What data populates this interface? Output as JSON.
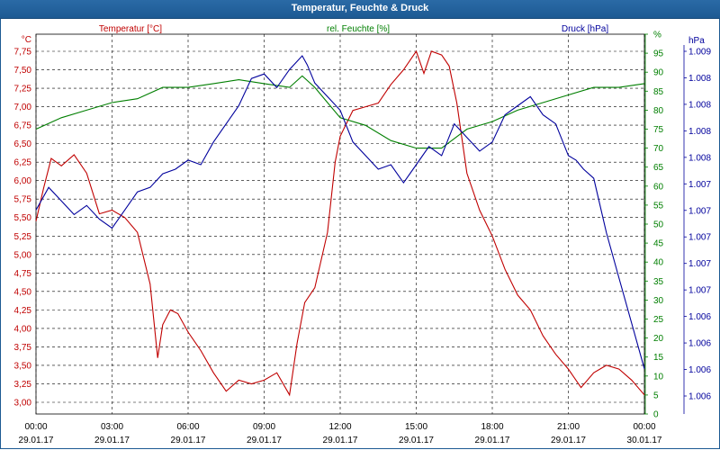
{
  "window": {
    "title": "Temperatur, Feuchte & Druck"
  },
  "colors": {
    "temperature": "#c00000",
    "humidity": "#007f00",
    "pressure": "#00009c",
    "title_bar": "#1d5a93",
    "grid": "#000000"
  },
  "chart_data": {
    "type": "line",
    "title": "Temperatur, Feuchte & Druck",
    "grid": true,
    "x_ticks": [
      {
        "time": "00:00",
        "date": "29.01.17"
      },
      {
        "time": "03:00",
        "date": "29.01.17"
      },
      {
        "time": "06:00",
        "date": "29.01.17"
      },
      {
        "time": "09:00",
        "date": "29.01.17"
      },
      {
        "time": "12:00",
        "date": "29.01.17"
      },
      {
        "time": "15:00",
        "date": "29.01.17"
      },
      {
        "time": "18:00",
        "date": "29.01.17"
      },
      {
        "time": "21:00",
        "date": "29.01.17"
      },
      {
        "time": "00:00",
        "date": "30.01.17"
      }
    ],
    "x_range_hours": [
      0,
      24
    ],
    "axes": {
      "temperature": {
        "label": "Temperatur [°C]",
        "unit": "°C",
        "ylim": [
          3.0,
          7.75
        ],
        "ticks": [
          "3,00",
          "3,25",
          "3,50",
          "3,75",
          "4,00",
          "4,25",
          "4,50",
          "4,75",
          "5,00",
          "5,25",
          "5,50",
          "5,75",
          "6,00",
          "6,25",
          "6,50",
          "6,75",
          "7,00",
          "7,25",
          "7,50",
          "7,75"
        ]
      },
      "humidity": {
        "label": "rel. Feuchte [%]",
        "unit": "%",
        "ylim": [
          0,
          100
        ],
        "ticks": [
          "0",
          "5",
          "10",
          "15",
          "20",
          "25",
          "30",
          "35",
          "40",
          "45",
          "50",
          "55",
          "60",
          "65",
          "70",
          "75",
          "80",
          "85",
          "90",
          "95",
          "%"
        ]
      },
      "pressure": {
        "label": "Druck [hPa]",
        "unit": "hPa",
        "ticks": [
          "1.006",
          "1.006",
          "1.006",
          "1.006",
          "1.007",
          "1.007",
          "1.007",
          "1.007",
          "1.007",
          "1.008",
          "1.008",
          "1.008",
          "1.008",
          "1.009"
        ]
      }
    },
    "series": [
      {
        "name": "Temperatur [°C]",
        "axis": "temperature",
        "x": [
          0,
          0.3,
          0.6,
          1,
          1.5,
          2,
          2.5,
          3,
          3.5,
          4,
          4.5,
          4.8,
          5,
          5.3,
          5.6,
          6,
          6.5,
          7,
          7.5,
          8,
          8.5,
          9,
          9.5,
          10,
          10.3,
          10.6,
          11,
          11.5,
          11.8,
          12,
          12.5,
          13,
          13.5,
          14,
          14.5,
          15,
          15.3,
          15.6,
          16,
          16.3,
          16.6,
          17,
          17.5,
          18,
          18.5,
          19,
          19.5,
          20,
          20.5,
          21,
          21.5,
          22,
          22.5,
          23,
          23.5,
          24
        ],
        "values": [
          5.45,
          5.9,
          6.3,
          6.2,
          6.35,
          6.1,
          5.55,
          5.6,
          5.5,
          5.3,
          4.6,
          3.6,
          4.05,
          4.25,
          4.2,
          3.95,
          3.7,
          3.4,
          3.15,
          3.3,
          3.25,
          3.3,
          3.4,
          3.1,
          3.8,
          4.35,
          4.55,
          5.3,
          6.25,
          6.6,
          6.95,
          7.0,
          7.05,
          7.3,
          7.5,
          7.75,
          7.45,
          7.75,
          7.7,
          7.55,
          7.05,
          6.1,
          5.6,
          5.25,
          4.8,
          4.45,
          4.25,
          3.9,
          3.65,
          3.45,
          3.2,
          3.4,
          3.5,
          3.45,
          3.3,
          3.1
        ]
      },
      {
        "name": "rel. Feuchte [%]",
        "axis": "humidity",
        "x": [
          0,
          1,
          2,
          3,
          4,
          5,
          6,
          7,
          8,
          9,
          10,
          10.5,
          11,
          11.5,
          12,
          13,
          14,
          15,
          16,
          17,
          18,
          19,
          20,
          21,
          22,
          23,
          24
        ],
        "values": [
          75,
          78,
          80,
          82,
          83,
          86,
          86,
          87,
          88,
          87,
          86,
          89,
          86,
          82,
          78,
          76,
          72,
          70,
          70,
          75,
          77,
          80,
          82,
          84,
          86,
          86,
          87
        ]
      },
      {
        "name": "Druck [hPa]",
        "axis": "pressure",
        "x": [
          0,
          0.5,
          1,
          1.5,
          2,
          2.5,
          3,
          3.5,
          4,
          4.5,
          5,
          5.5,
          6,
          6.5,
          7,
          7.5,
          8,
          8.5,
          9,
          9.5,
          10,
          10.5,
          10.7,
          11,
          11.5,
          12,
          12.5,
          13,
          13.5,
          14,
          14.5,
          15,
          15.5,
          16,
          16.5,
          17,
          17.5,
          18,
          18.5,
          19,
          19.5,
          20,
          20.5,
          21,
          21.3,
          21.6,
          22,
          22.5,
          23,
          23.5,
          24
        ],
        "values": [
          1.00735,
          1.0076,
          1.00745,
          1.0073,
          1.0074,
          1.00725,
          1.00715,
          1.00735,
          1.00755,
          1.0076,
          1.00775,
          1.0078,
          1.0079,
          1.00785,
          1.0081,
          1.0083,
          1.0085,
          1.0088,
          1.00885,
          1.0087,
          1.0089,
          1.00905,
          1.00895,
          1.00875,
          1.0086,
          1.00845,
          1.0081,
          1.00795,
          1.0078,
          1.00785,
          1.00765,
          1.00785,
          1.00805,
          1.00795,
          1.0083,
          1.00815,
          1.008,
          1.0081,
          1.0084,
          1.0085,
          1.0086,
          1.0084,
          1.0083,
          1.00795,
          1.0079,
          1.0078,
          1.0077,
          1.0071,
          1.0066,
          1.0061,
          1.0056
        ]
      }
    ]
  }
}
